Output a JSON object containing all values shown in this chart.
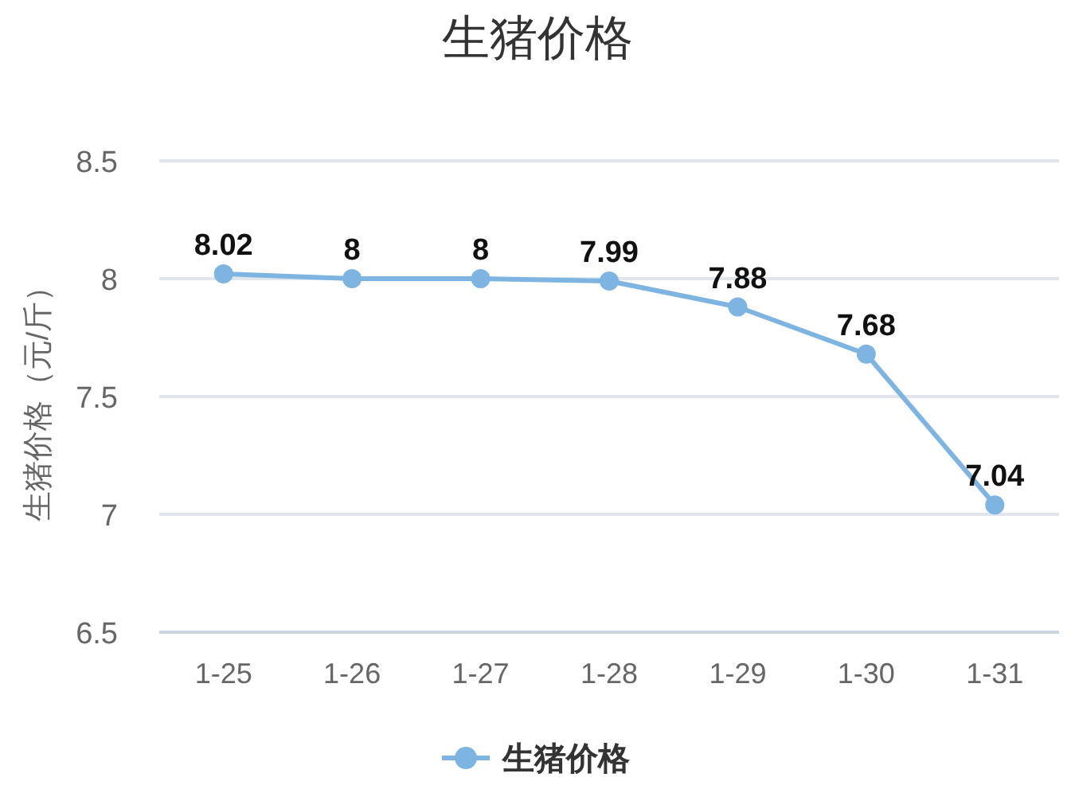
{
  "chart_data": {
    "type": "line",
    "title": "生猪价格",
    "ylabel": "生猪价格（元/斤）",
    "categories": [
      "1-25",
      "1-26",
      "1-27",
      "1-28",
      "1-29",
      "1-30",
      "1-31"
    ],
    "series": [
      {
        "name": "生猪价格",
        "color": "#7eb4e2",
        "values": [
          8.02,
          8,
          8,
          7.99,
          7.88,
          7.68,
          7.04
        ]
      }
    ],
    "ylim": [
      6.5,
      8.5
    ],
    "yticks": [
      6.5,
      7,
      7.5,
      8,
      8.5
    ],
    "grid": "y",
    "legend": "bottom",
    "marker": "circle",
    "line_style": "solid",
    "data_labels": true
  }
}
